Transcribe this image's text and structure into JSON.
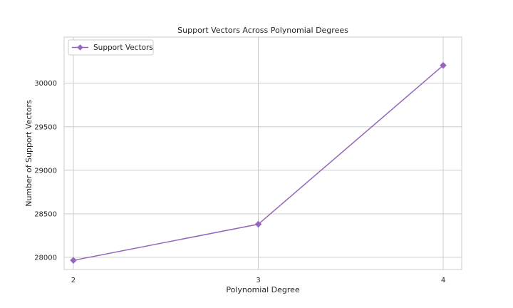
{
  "chart_data": {
    "type": "line",
    "title": "Support Vectors Across Polynomial Degrees",
    "xlabel": "Polynomial Degree",
    "ylabel": "Number of Support Vectors",
    "x": [
      2,
      3,
      4
    ],
    "x_tick_labels": [
      "2",
      "3",
      "4"
    ],
    "series": [
      {
        "name": "Support Vectors",
        "values": [
          27965,
          28380,
          30205
        ],
        "color": "#9467bd",
        "marker": "diamond"
      }
    ],
    "xlim": [
      1.95,
      4.1
    ],
    "ylim": [
      27860,
      30530
    ],
    "y_ticks": [
      28000,
      28500,
      29000,
      29500,
      30000
    ],
    "y_tick_labels": [
      "28000",
      "28500",
      "29000",
      "29500",
      "30000"
    ],
    "grid": true,
    "legend": "top-left"
  }
}
